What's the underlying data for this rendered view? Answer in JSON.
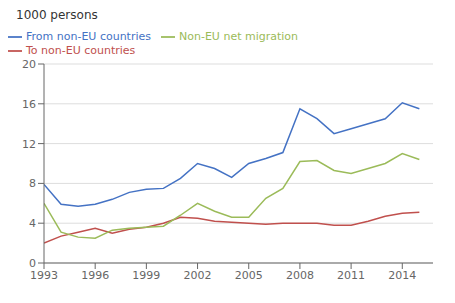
{
  "chart_data": {
    "type": "line",
    "title": "1000 persons",
    "x": [
      1993,
      1994,
      1995,
      1996,
      1997,
      1998,
      1999,
      2000,
      2001,
      2002,
      2003,
      2004,
      2005,
      2006,
      2007,
      2008,
      2009,
      2010,
      2011,
      2012,
      2013,
      2014,
      2015
    ],
    "series": [
      {
        "name": "From non-EU countries",
        "color": "#4472C4",
        "values": [
          7.9,
          5.9,
          5.7,
          5.9,
          6.4,
          7.1,
          7.4,
          7.5,
          8.5,
          10.0,
          9.5,
          8.6,
          10.0,
          10.5,
          11.1,
          15.5,
          14.5,
          13.0,
          13.5,
          14.0,
          14.5,
          16.1,
          15.5
        ]
      },
      {
        "name": "To non-EU countries",
        "color": "#C0504D",
        "values": [
          2.0,
          2.7,
          3.1,
          3.5,
          3.0,
          3.4,
          3.6,
          4.0,
          4.6,
          4.5,
          4.2,
          4.1,
          4.0,
          3.9,
          4.0,
          4.0,
          4.0,
          3.8,
          3.8,
          4.2,
          4.7,
          5.0,
          5.1
        ]
      },
      {
        "name": "Non-EU net migration",
        "color": "#9BBB59",
        "values": [
          6.0,
          3.1,
          2.6,
          2.5,
          3.3,
          3.5,
          3.6,
          3.7,
          4.8,
          6.0,
          5.2,
          4.6,
          4.6,
          6.5,
          7.5,
          10.2,
          10.3,
          9.3,
          9.0,
          9.5,
          10.0,
          11.0,
          10.4
        ]
      }
    ],
    "xlim": [
      1993,
      2015.8
    ],
    "xticks": [
      1993,
      1996,
      1999,
      2002,
      2005,
      2008,
      2011,
      2014
    ],
    "ylim": [
      0,
      20
    ],
    "yticks": [
      0,
      4,
      8,
      12,
      16,
      20
    ],
    "grid": true,
    "legend": "upper left"
  }
}
